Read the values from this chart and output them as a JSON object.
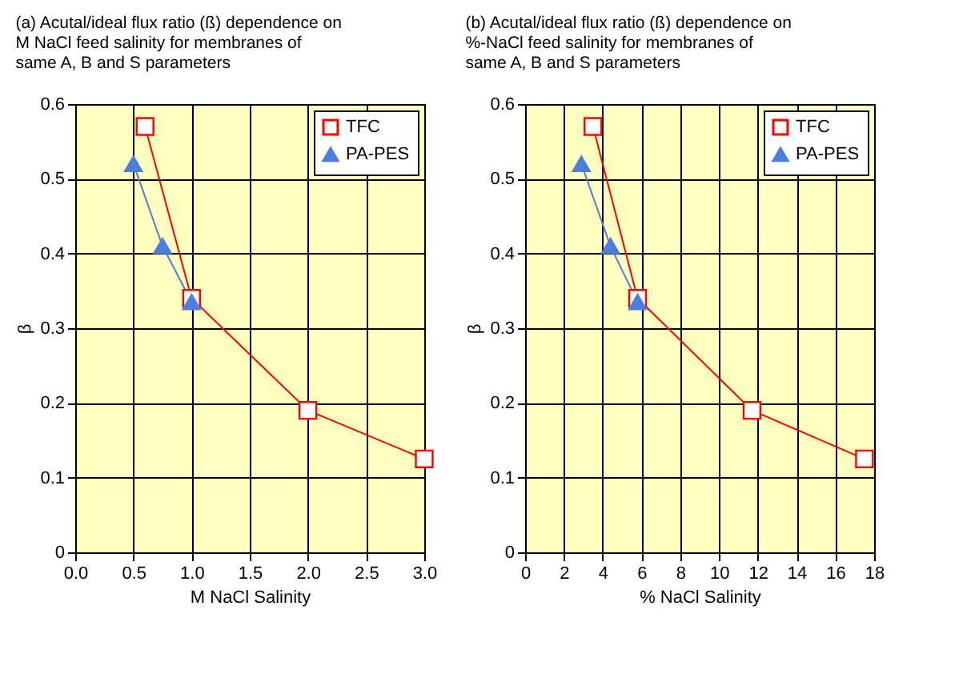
{
  "chart_data": [
    {
      "type": "line",
      "title": "(a) Acutal/ideal flux ratio (ß) dependence on\nM NaCl feed salinity  for membranes of\nsame A, B and S parameters",
      "xlabel": "M NaCl Salinity",
      "ylabel": "β",
      "series": [
        {
          "name": "TFC",
          "color": "#ff0000",
          "marker": "square",
          "x": [
            0.6,
            1.0,
            2.0,
            3.0
          ],
          "values": [
            0.57,
            0.34,
            0.19,
            0.125
          ]
        },
        {
          "name": "PA-PES",
          "color": "#4a7fe0",
          "marker": "triangle",
          "x": [
            0.5,
            0.75,
            1.0
          ],
          "values": [
            0.52,
            0.41,
            0.335
          ]
        }
      ],
      "xlim": [
        0,
        3
      ],
      "xticks": [
        {
          "value": 0,
          "label": "0.0"
        },
        0.5,
        {
          "value": 1,
          "label": "1.0"
        },
        1.5,
        {
          "value": 2,
          "label": "2.0"
        },
        2.5,
        {
          "value": 3,
          "label": "3.0"
        }
      ],
      "ylim": [
        0,
        0.6
      ],
      "yticks": [
        0,
        0.1,
        0.2,
        0.3,
        0.4,
        0.5,
        0.6
      ],
      "grid": true,
      "legend": "top right"
    },
    {
      "type": "line",
      "title": "(b) Acutal/ideal flux ratio (ß) dependence on\n%-NaCl feed salinity  for membranes of\nsame A, B and S parameters",
      "xlabel": "% NaCl Salinity",
      "ylabel": "β",
      "series": [
        {
          "name": "TFC",
          "color": "#ff0000",
          "marker": "square",
          "x": [
            3.5,
            5.8,
            11.7,
            17.5
          ],
          "values": [
            0.57,
            0.34,
            0.19,
            0.125
          ]
        },
        {
          "name": "PA-PES",
          "color": "#4a7fe0",
          "marker": "triangle",
          "x": [
            2.9,
            4.4,
            5.8
          ],
          "values": [
            0.52,
            0.41,
            0.335
          ]
        }
      ],
      "xlim": [
        0,
        18
      ],
      "xticks": [
        0,
        2,
        4,
        6,
        8,
        10,
        12,
        14,
        16,
        18
      ],
      "ylim": [
        0,
        0.6
      ],
      "yticks": [
        0,
        0.1,
        0.2,
        0.3,
        0.4,
        0.5,
        0.6
      ],
      "grid": true,
      "legend": "top right"
    }
  ]
}
